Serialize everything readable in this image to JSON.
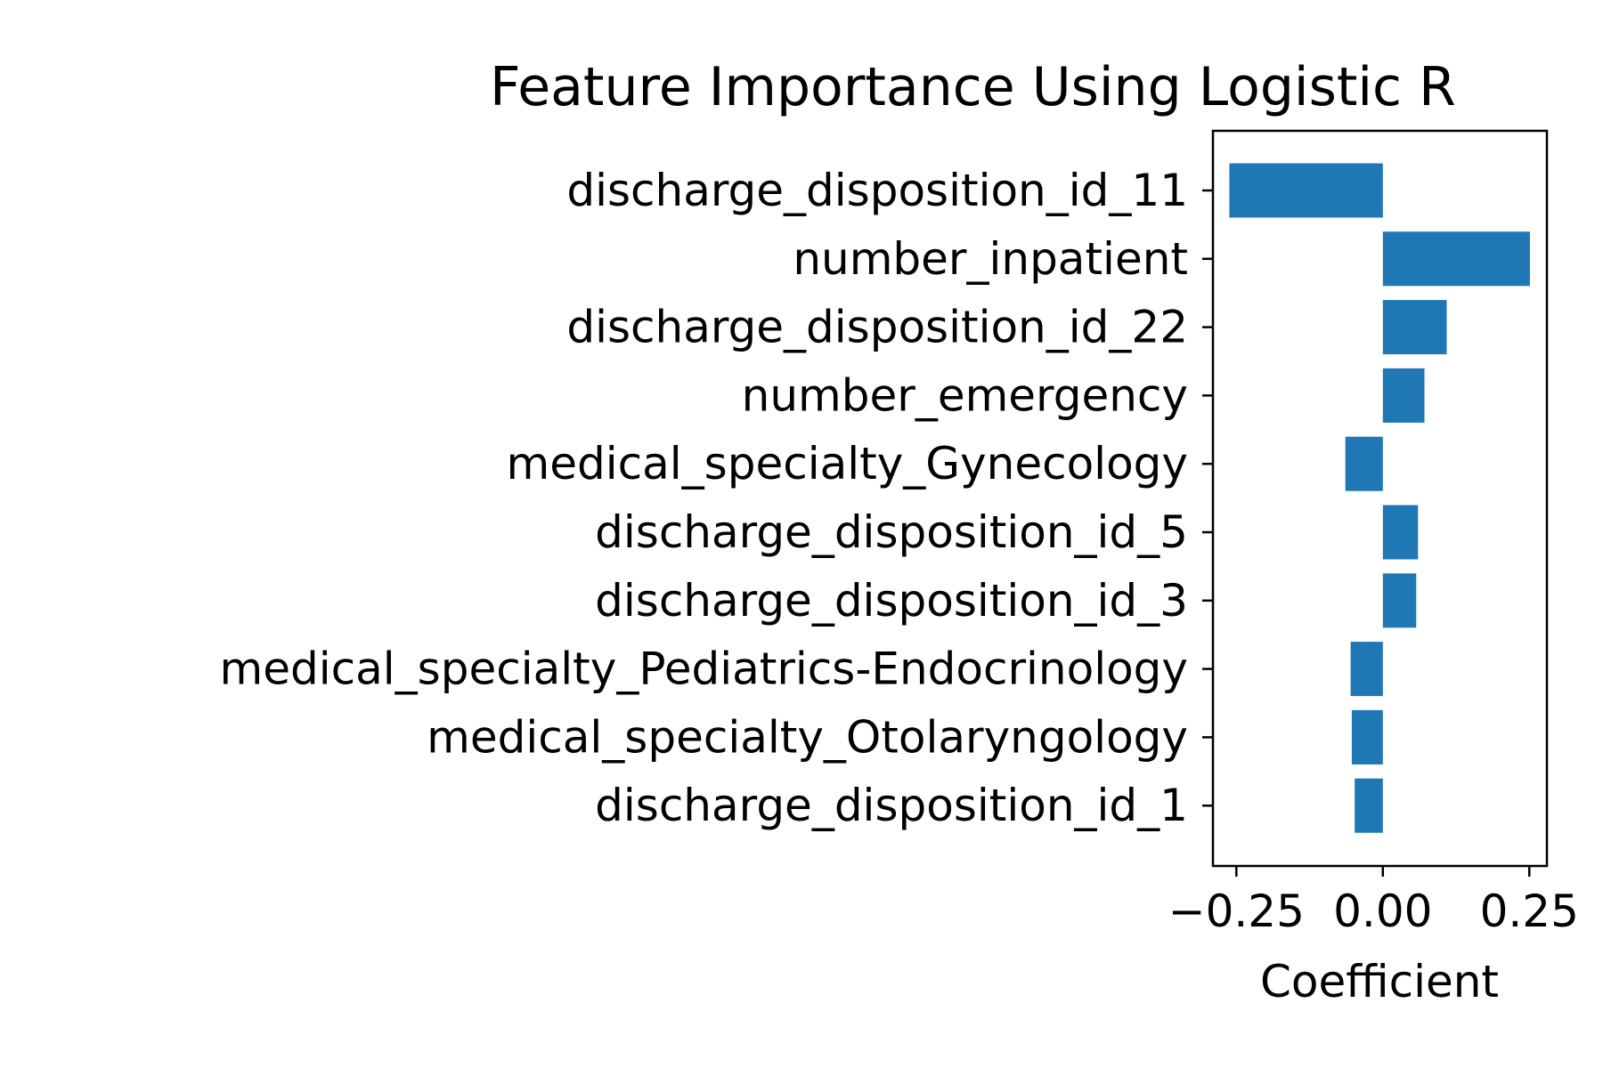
{
  "chart_data": {
    "type": "bar",
    "orientation": "horizontal",
    "title": "Feature Importance Using Logistic R",
    "xlabel": "Coefficient",
    "ylabel": "",
    "categories": [
      "discharge_disposition_id_11",
      "number_inpatient",
      "discharge_disposition_id_22",
      "number_emergency",
      "medical_specialty_Gynecology",
      "discharge_disposition_id_5",
      "discharge_disposition_id_3",
      "medical_specialty_Pediatrics-Endocrinology",
      "medical_specialty_Otolaryngology",
      "discharge_disposition_id_1"
    ],
    "values": [
      -0.262,
      0.251,
      0.109,
      0.071,
      -0.064,
      0.06,
      0.057,
      -0.055,
      -0.053,
      -0.048
    ],
    "xlim": [
      -0.29,
      0.28
    ],
    "xticks": [
      -0.25,
      0.0,
      0.25
    ],
    "xtick_labels": [
      "−0.25",
      "0.00",
      "0.25"
    ],
    "grid": false,
    "bar_color": "#1f77b4"
  }
}
